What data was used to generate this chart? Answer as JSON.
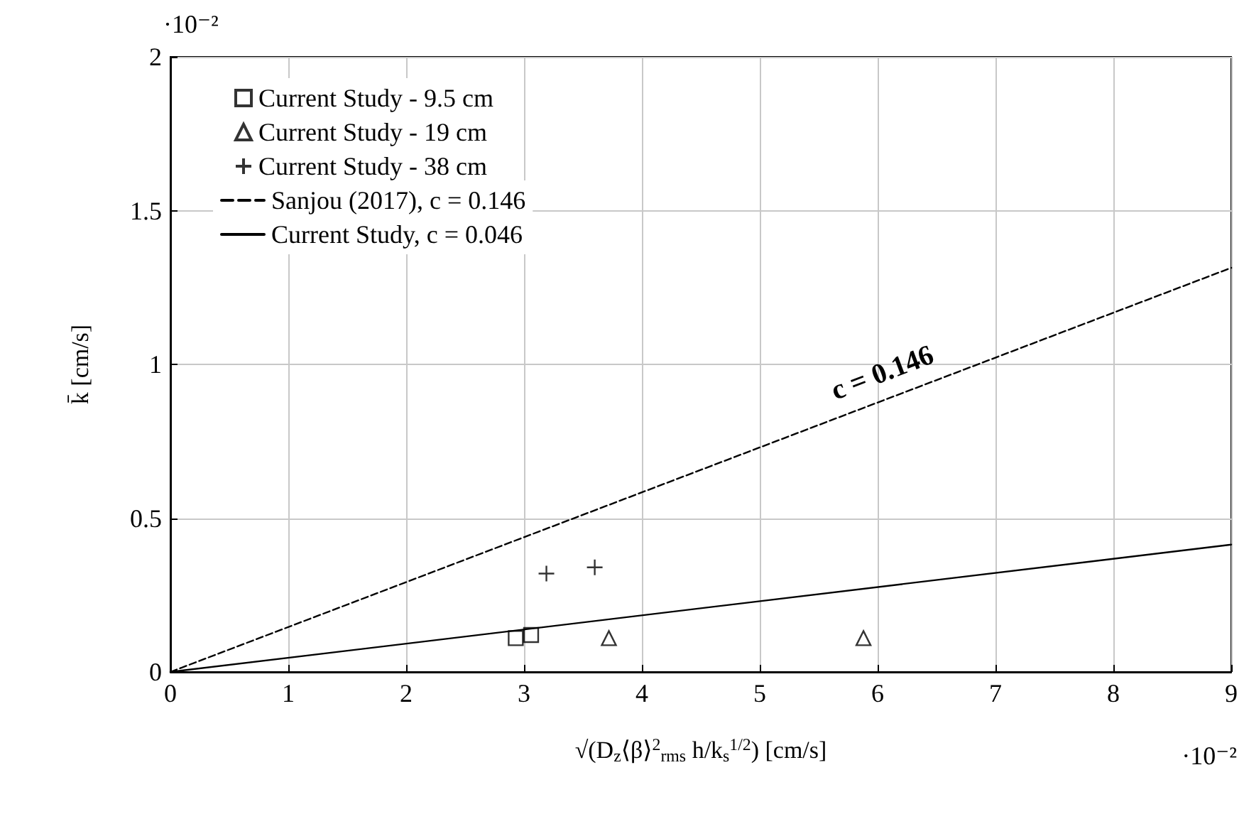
{
  "chart_data": {
    "type": "scatter",
    "xlabel": "√(D$_{z}$⟨β⟩$^{2}$$_{rms}$ h/k$_{s}$$^{1/2}$) [cm/s]",
    "ylabel": "k̄ [cm/s]",
    "xlim": [
      0,
      9
    ],
    "xticks": [
      0,
      1,
      2,
      3,
      4,
      5,
      6,
      7,
      8,
      9
    ],
    "ylim": [
      0,
      2
    ],
    "yticks": [
      0,
      0.5,
      1,
      1.5,
      2
    ],
    "grid": true,
    "legend": "top left",
    "series": [
      {
        "name": "Current Study - 9.5 cm",
        "marker": "square",
        "color": "#000000",
        "x": [
          2.93,
          3.06
        ],
        "values": [
          0.11,
          0.12
        ]
      },
      {
        "name": "Current Study - 19 cm",
        "marker": "triangle",
        "color": "#000000",
        "x": [
          3.72,
          5.88
        ],
        "values": [
          0.11,
          0.11
        ]
      },
      {
        "name": "Current Study - 38 cm",
        "marker": "cross",
        "color": "#000000",
        "x": [
          3.19,
          3.6
        ],
        "values": [
          0.32,
          0.34
        ]
      },
      {
        "name": "Sanjou (2017), c = 0.146",
        "type": "line",
        "marker": "none",
        "line_style": "dashed",
        "color": "#000000",
        "x": [
          0,
          9
        ],
        "values": [
          0,
          1.314
        ]
      },
      {
        "name": "Current Study, c = 0.046",
        "type": "line",
        "marker": "none",
        "line_style": "solid",
        "color": "#000000",
        "x": [
          0,
          9
        ],
        "values": [
          0,
          0.414
        ]
      }
    ],
    "annotations": [
      "·10⁻²",
      "·10⁻²",
      "c = 0.146"
    ]
  }
}
